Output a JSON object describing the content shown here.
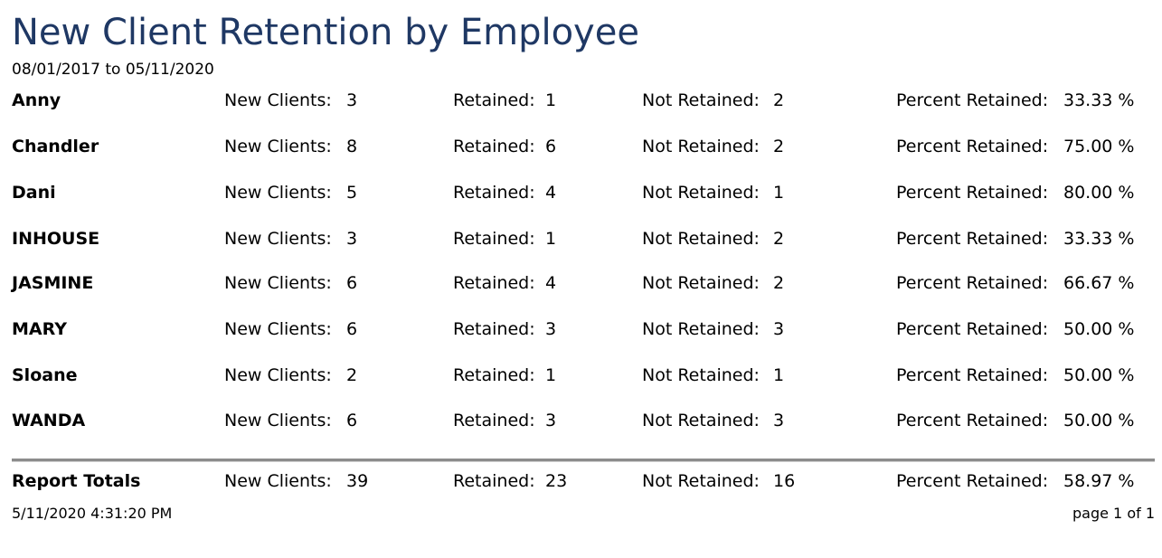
{
  "report": {
    "title": "New Client Retention by Employee",
    "date_range": "08/01/2017 to 05/11/2020"
  },
  "labels": {
    "new_clients": "New Clients:",
    "retained": "Retained:",
    "not_retained": "Not Retained:",
    "percent_retained": "Percent Retained:"
  },
  "employees": [
    {
      "name": "Anny",
      "new_clients": "3",
      "retained": "1",
      "not_retained": "2",
      "percent_retained": "33.33 %"
    },
    {
      "name": "Chandler",
      "new_clients": "8",
      "retained": "6",
      "not_retained": "2",
      "percent_retained": "75.00 %"
    },
    {
      "name": "Dani",
      "new_clients": "5",
      "retained": "4",
      "not_retained": "1",
      "percent_retained": "80.00 %"
    },
    {
      "name": "INHOUSE",
      "new_clients": "3",
      "retained": "1",
      "not_retained": "2",
      "percent_retained": "33.33 %"
    },
    {
      "name": "JASMINE",
      "new_clients": "6",
      "retained": "4",
      "not_retained": "2",
      "percent_retained": "66.67 %"
    },
    {
      "name": "MARY",
      "new_clients": "6",
      "retained": "3",
      "not_retained": "3",
      "percent_retained": "50.00 %"
    },
    {
      "name": "Sloane",
      "new_clients": "2",
      "retained": "1",
      "not_retained": "1",
      "percent_retained": "50.00 %"
    },
    {
      "name": "WANDA",
      "new_clients": "6",
      "retained": "3",
      "not_retained": "3",
      "percent_retained": "50.00 %"
    }
  ],
  "totals": {
    "name": "Report Totals",
    "new_clients": "39",
    "retained": "23",
    "not_retained": "16",
    "percent_retained": "58.97 %"
  },
  "footer": {
    "timestamp": "5/11/2020 4:31:20 PM",
    "page_info": "page 1 of 1"
  }
}
